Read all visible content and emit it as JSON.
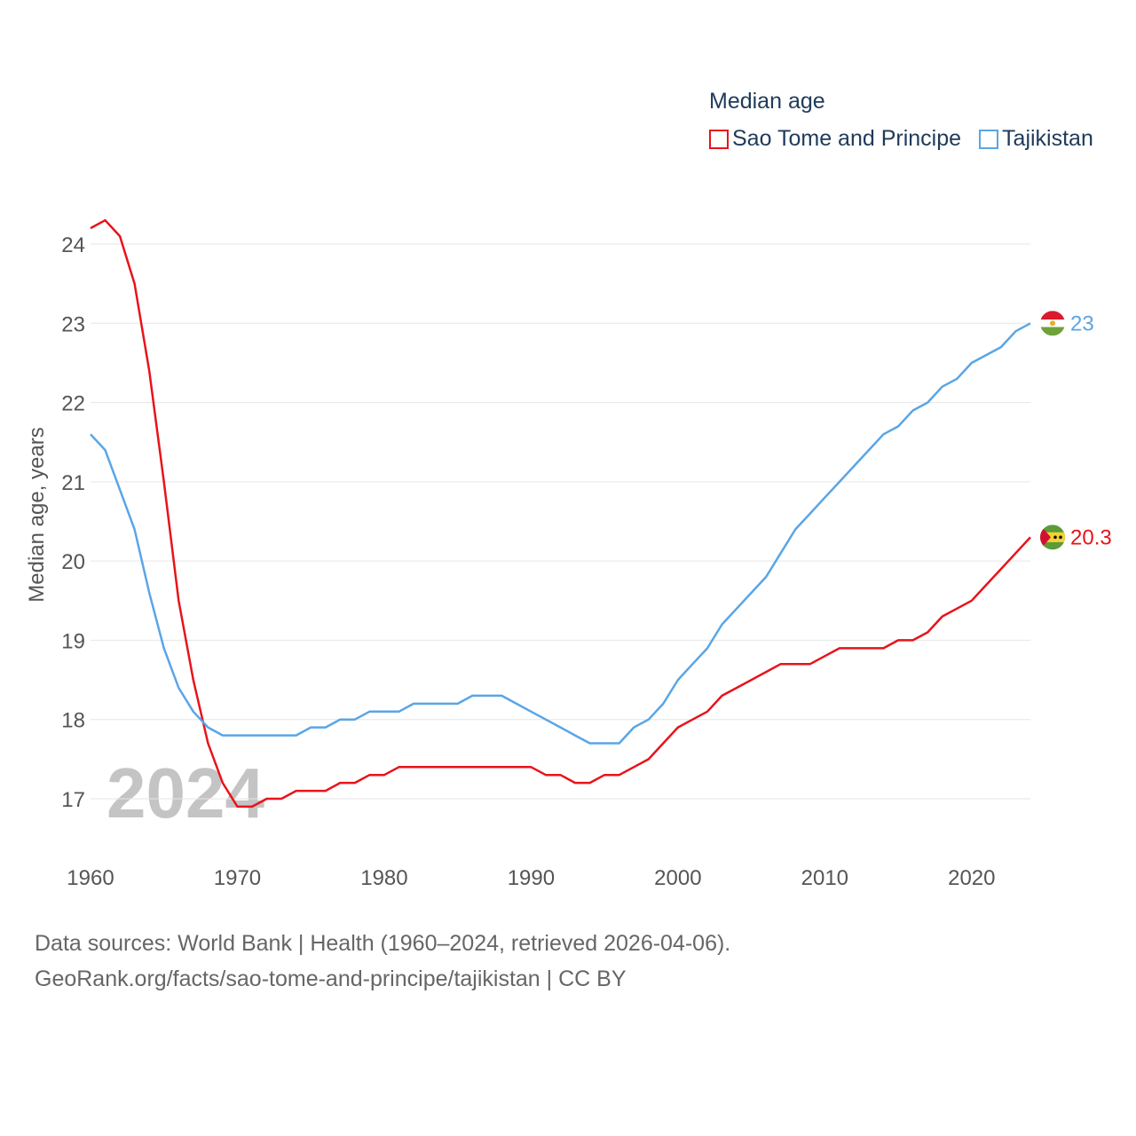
{
  "chart_data": {
    "type": "line",
    "title": "Median age",
    "ylabel": "Median age, years",
    "xlabel": "",
    "xlim": [
      1960,
      2024
    ],
    "ylim": [
      16.7,
      24.4
    ],
    "x_ticks": [
      1960,
      1970,
      1980,
      1990,
      2000,
      2010,
      2020
    ],
    "y_ticks": [
      17,
      18,
      19,
      20,
      21,
      22,
      23,
      24
    ],
    "grid": true,
    "legend_position": "top-right",
    "watermark_year": "2024",
    "x": [
      1960,
      1961,
      1962,
      1963,
      1964,
      1965,
      1966,
      1967,
      1968,
      1969,
      1970,
      1971,
      1972,
      1973,
      1974,
      1975,
      1976,
      1977,
      1978,
      1979,
      1980,
      1981,
      1982,
      1983,
      1984,
      1985,
      1986,
      1987,
      1988,
      1989,
      1990,
      1991,
      1992,
      1993,
      1994,
      1995,
      1996,
      1997,
      1998,
      1999,
      2000,
      2001,
      2002,
      2003,
      2004,
      2005,
      2006,
      2007,
      2008,
      2009,
      2010,
      2011,
      2012,
      2013,
      2014,
      2015,
      2016,
      2017,
      2018,
      2019,
      2020,
      2021,
      2022,
      2023,
      2024
    ],
    "series": [
      {
        "name": "Sao Tome and Principe",
        "color": "#e8131b",
        "end_label": "20.3",
        "values": [
          24.2,
          24.3,
          24.1,
          23.5,
          22.4,
          21.0,
          19.5,
          18.5,
          17.7,
          17.2,
          16.9,
          16.9,
          17.0,
          17.0,
          17.1,
          17.1,
          17.1,
          17.2,
          17.2,
          17.3,
          17.3,
          17.4,
          17.4,
          17.4,
          17.4,
          17.4,
          17.4,
          17.4,
          17.4,
          17.4,
          17.4,
          17.3,
          17.3,
          17.2,
          17.2,
          17.3,
          17.3,
          17.4,
          17.5,
          17.7,
          17.9,
          18.0,
          18.1,
          18.3,
          18.4,
          18.5,
          18.6,
          18.7,
          18.7,
          18.7,
          18.8,
          18.9,
          18.9,
          18.9,
          18.9,
          19.0,
          19.0,
          19.1,
          19.3,
          19.4,
          19.5,
          19.7,
          19.9,
          20.1,
          20.3
        ]
      },
      {
        "name": "Tajikistan",
        "color": "#5aa5e6",
        "end_label": "23",
        "values": [
          21.6,
          21.4,
          20.9,
          20.4,
          19.6,
          18.9,
          18.4,
          18.1,
          17.9,
          17.8,
          17.8,
          17.8,
          17.8,
          17.8,
          17.8,
          17.9,
          17.9,
          18.0,
          18.0,
          18.1,
          18.1,
          18.1,
          18.2,
          18.2,
          18.2,
          18.2,
          18.3,
          18.3,
          18.3,
          18.2,
          18.1,
          18.0,
          17.9,
          17.8,
          17.7,
          17.7,
          17.7,
          17.9,
          18.0,
          18.2,
          18.5,
          18.7,
          18.9,
          19.2,
          19.4,
          19.6,
          19.8,
          20.1,
          20.4,
          20.6,
          20.8,
          21.0,
          21.2,
          21.4,
          21.6,
          21.7,
          21.9,
          22.0,
          22.2,
          22.3,
          22.5,
          22.6,
          22.7,
          22.9,
          23.0
        ]
      }
    ]
  },
  "source": {
    "line1": "Data sources: World Bank | Health (1960–2024, retrieved 2026-04-06).",
    "line2": "GeoRank.org/facts/sao-tome-and-principe/tajikistan | CC BY"
  }
}
